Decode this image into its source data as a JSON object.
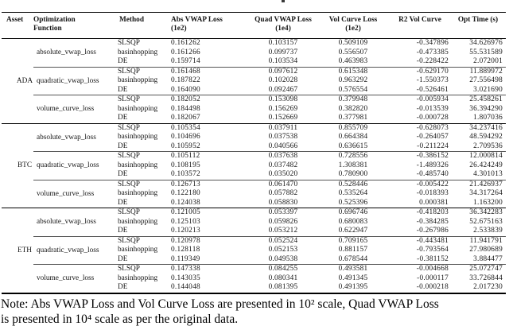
{
  "table": {
    "headers": [
      {
        "l1": "Asset",
        "l2": ""
      },
      {
        "l1": "Optimization",
        "l2": "Function"
      },
      {
        "l1": "Method",
        "l2": ""
      },
      {
        "l1": "Abs VWAP Loss",
        "l2": "(1e2)"
      },
      {
        "l1": "Quad VWAP Loss",
        "l2": "(1e4)"
      },
      {
        "l1": "Vol Curve Loss",
        "l2": "(1e2)"
      },
      {
        "l1": "R2 Vol Curve",
        "l2": ""
      },
      {
        "l1": "Opt Time (s)",
        "l2": ""
      }
    ],
    "assets": [
      {
        "asset": "ADA",
        "functions": [
          {
            "name": "absolute_vwap_loss",
            "rows": [
              {
                "method": "SLSQP",
                "abs": "0.161262",
                "quad": "0.103157",
                "vol": "0.509109",
                "r2": "-0.347896",
                "time": "34.626976"
              },
              {
                "method": "basinhopping",
                "abs": "0.161266",
                "quad": "0.099737",
                "vol": "0.556507",
                "r2": "-0.473385",
                "time": "55.531589"
              },
              {
                "method": "DE",
                "abs": "0.159714",
                "quad": "0.103534",
                "vol": "0.463983",
                "r2": "-0.228422",
                "time": "2.072001"
              }
            ]
          },
          {
            "name": "quadratic_vwap_loss",
            "rows": [
              {
                "method": "SLSQP",
                "abs": "0.161468",
                "quad": "0.097612",
                "vol": "0.615348",
                "r2": "-0.629170",
                "time": "11.889972"
              },
              {
                "method": "basinhopping",
                "abs": "0.187822",
                "quad": "0.102028",
                "vol": "0.963292",
                "r2": "-1.550373",
                "time": "27.556498"
              },
              {
                "method": "DE",
                "abs": "0.164090",
                "quad": "0.092467",
                "vol": "0.576554",
                "r2": "-0.526461",
                "time": "3.021690"
              }
            ]
          },
          {
            "name": "volume_curve_loss",
            "rows": [
              {
                "method": "SLSQP",
                "abs": "0.182052",
                "quad": "0.153098",
                "vol": "0.379948",
                "r2": "-0.005934",
                "time": "25.458261"
              },
              {
                "method": "basinhopping",
                "abs": "0.184498",
                "quad": "0.156269",
                "vol": "0.382820",
                "r2": "-0.013539",
                "time": "36.394290"
              },
              {
                "method": "DE",
                "abs": "0.182067",
                "quad": "0.152669",
                "vol": "0.377981",
                "r2": "-0.000728",
                "time": "1.807036"
              }
            ]
          }
        ]
      },
      {
        "asset": "BTC",
        "functions": [
          {
            "name": "absolute_vwap_loss",
            "rows": [
              {
                "method": "SLSQP",
                "abs": "0.105354",
                "quad": "0.037911",
                "vol": "0.855709",
                "r2": "-0.628073",
                "time": "34.237416"
              },
              {
                "method": "basinhopping",
                "abs": "0.104696",
                "quad": "0.037538",
                "vol": "0.664384",
                "r2": "-0.264057",
                "time": "48.594292"
              },
              {
                "method": "DE",
                "abs": "0.105952",
                "quad": "0.040566",
                "vol": "0.636615",
                "r2": "-0.211224",
                "time": "2.709536"
              }
            ]
          },
          {
            "name": "quadratic_vwap_loss",
            "rows": [
              {
                "method": "SLSQP",
                "abs": "0.105112",
                "quad": "0.037638",
                "vol": "0.728556",
                "r2": "-0.386152",
                "time": "12.000814"
              },
              {
                "method": "basinhopping",
                "abs": "0.108195",
                "quad": "0.037482",
                "vol": "1.308381",
                "r2": "-1.489326",
                "time": "26.424249"
              },
              {
                "method": "DE",
                "abs": "0.103572",
                "quad": "0.035020",
                "vol": "0.780900",
                "r2": "-0.485740",
                "time": "4.301013"
              }
            ]
          },
          {
            "name": "volume_curve_loss",
            "rows": [
              {
                "method": "SLSQP",
                "abs": "0.126713",
                "quad": "0.061470",
                "vol": "0.528446",
                "r2": "-0.005422",
                "time": "21.426937"
              },
              {
                "method": "basinhopping",
                "abs": "0.122180",
                "quad": "0.057882",
                "vol": "0.535264",
                "r2": "-0.018393",
                "time": "34.317264"
              },
              {
                "method": "DE",
                "abs": "0.124038",
                "quad": "0.058830",
                "vol": "0.525396",
                "r2": "0.000381",
                "time": "1.163200"
              }
            ]
          }
        ]
      },
      {
        "asset": "ETH",
        "functions": [
          {
            "name": "absolute_vwap_loss",
            "rows": [
              {
                "method": "SLSQP",
                "abs": "0.121005",
                "quad": "0.053397",
                "vol": "0.696746",
                "r2": "-0.418203",
                "time": "36.342283"
              },
              {
                "method": "basinhopping",
                "abs": "0.125103",
                "quad": "0.059826",
                "vol": "0.680083",
                "r2": "-0.384285",
                "time": "52.675163"
              },
              {
                "method": "DE",
                "abs": "0.120213",
                "quad": "0.053212",
                "vol": "0.622947",
                "r2": "-0.267986",
                "time": "2.533839"
              }
            ]
          },
          {
            "name": "quadratic_vwap_loss",
            "rows": [
              {
                "method": "SLSQP",
                "abs": "0.120978",
                "quad": "0.052524",
                "vol": "0.709165",
                "r2": "-0.443481",
                "time": "11.941791"
              },
              {
                "method": "basinhopping",
                "abs": "0.128118",
                "quad": "0.052153",
                "vol": "0.881157",
                "r2": "-0.793564",
                "time": "27.980689"
              },
              {
                "method": "DE",
                "abs": "0.119349",
                "quad": "0.049538",
                "vol": "0.678544",
                "r2": "-0.381152",
                "time": "3.884477"
              }
            ]
          },
          {
            "name": "volume_curve_loss",
            "rows": [
              {
                "method": "SLSQP",
                "abs": "0.147338",
                "quad": "0.084255",
                "vol": "0.493581",
                "r2": "-0.004668",
                "time": "25.072747"
              },
              {
                "method": "basinhopping",
                "abs": "0.143035",
                "quad": "0.080341",
                "vol": "0.491345",
                "r2": "-0.000117",
                "time": "33.726844"
              },
              {
                "method": "DE",
                "abs": "0.144048",
                "quad": "0.081395",
                "vol": "0.491395",
                "r2": "-0.000218",
                "time": "2.017230"
              }
            ]
          }
        ]
      }
    ]
  },
  "note": {
    "line1": "Note: Abs VWAP Loss and Vol Curve Loss are presented in 10² scale, Quad VWAP Loss",
    "line2": "is presented in 10⁴ scale as per the original data."
  }
}
